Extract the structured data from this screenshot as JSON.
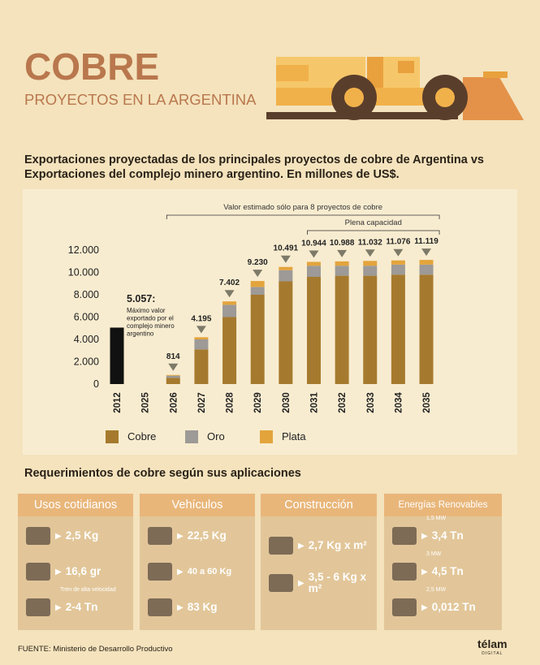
{
  "header": {
    "title": "COBRE",
    "subtitle": "PROYECTOS EN LA ARGENTINA"
  },
  "chart_data": {
    "type": "stacked_bar",
    "title": "Exportaciones proyectadas de los principales proyectos de cobre de Argentina vs Exportaciones del complejo minero argentino. En millones de US$.",
    "categories": [
      "2012",
      "2025",
      "2026",
      "2027",
      "2028",
      "2029",
      "2030",
      "2031",
      "2032",
      "2033",
      "2034",
      "2035"
    ],
    "series": [
      {
        "name": "Cobre",
        "color": "#a67a2e",
        "values": [
          null,
          null,
          550,
          3100,
          6000,
          8000,
          9200,
          9600,
          9700,
          9700,
          9800,
          9800
        ]
      },
      {
        "name": "Oro",
        "color": "#9d9a97",
        "values": [
          null,
          null,
          200,
          900,
          1100,
          700,
          1000,
          1000,
          900,
          900,
          900,
          900
        ]
      },
      {
        "name": "Plata",
        "color": "#e3a43c",
        "values": [
          null,
          null,
          64,
          195,
          302,
          530,
          291,
          344,
          388,
          432,
          376,
          419
        ]
      }
    ],
    "totals": {
      "values": [
        null,
        null,
        814,
        4195,
        7402,
        9230,
        10491,
        10944,
        10988,
        11032,
        11076,
        11119
      ],
      "value_labels": [
        null,
        null,
        "814",
        "4.195",
        "7.402",
        "9.230",
        "10.491",
        "10.944",
        "10.988",
        "11.032",
        "11.076",
        "11.119"
      ]
    },
    "complex": {
      "color": "#111111",
      "values": [
        5057,
        null,
        null,
        null,
        null,
        null,
        null,
        null,
        null,
        null,
        null,
        null
      ],
      "value_labels": [
        "5.057:",
        null,
        null,
        null,
        null,
        null,
        null,
        null,
        null,
        null,
        null,
        null
      ],
      "annotation": [
        "Máximo valor",
        "exportado por el",
        "complejo minero",
        "argentino"
      ]
    },
    "brackets": [
      {
        "label": "Valor estimado sólo para 8 proyectos de cobre",
        "from": "2026",
        "to": "2035"
      },
      {
        "label": "Plena capacidad",
        "from": "2031",
        "to": "2035"
      }
    ],
    "ylim": [
      0,
      12000
    ],
    "yticks": [
      0,
      {
        "value": 2000,
        "label": "2.000"
      },
      {
        "value": 4000,
        "label": "4.000"
      },
      {
        "value": 6000,
        "label": "6.000"
      },
      {
        "value": 8000,
        "label": "8.000"
      },
      {
        "value": 10000,
        "label": "10.000"
      },
      {
        "value": 12000,
        "label": "12.000"
      }
    ],
    "grid": false,
    "legend": "bottom"
  },
  "requirements": {
    "title": "Requerimientos de cobre según sus aplicaciones",
    "cards": [
      {
        "title": "Usos cotidianos",
        "items": [
          {
            "value": "2,5 Kg"
          },
          {
            "value": "16,6 gr"
          },
          {
            "note": "Tren de alta velocidad",
            "value": "2-4 Tn"
          }
        ]
      },
      {
        "title": "Vehículos",
        "items": [
          {
            "value": "22,5 Kg"
          },
          {
            "value": "40 a 60 Kg"
          },
          {
            "value": "83 Kg"
          }
        ]
      },
      {
        "title": "Construcción",
        "items": [
          {
            "value": "2,7 Kg x m²"
          },
          {
            "value": "3,5 - 6 Kg x m²"
          }
        ]
      },
      {
        "title": "Energías Renovables",
        "items": [
          {
            "note": "1,5 MW",
            "value": "3,4 Tn"
          },
          {
            "note": "3 MW",
            "value": "4,5 Tn"
          },
          {
            "note": "2,5 MW",
            "value": "0,012 Tn"
          }
        ]
      }
    ]
  },
  "footer": {
    "source": "FUENTE: Ministerio de Desarrollo Productivo",
    "logo": "télam",
    "logo_sub": "DIGITAL"
  }
}
